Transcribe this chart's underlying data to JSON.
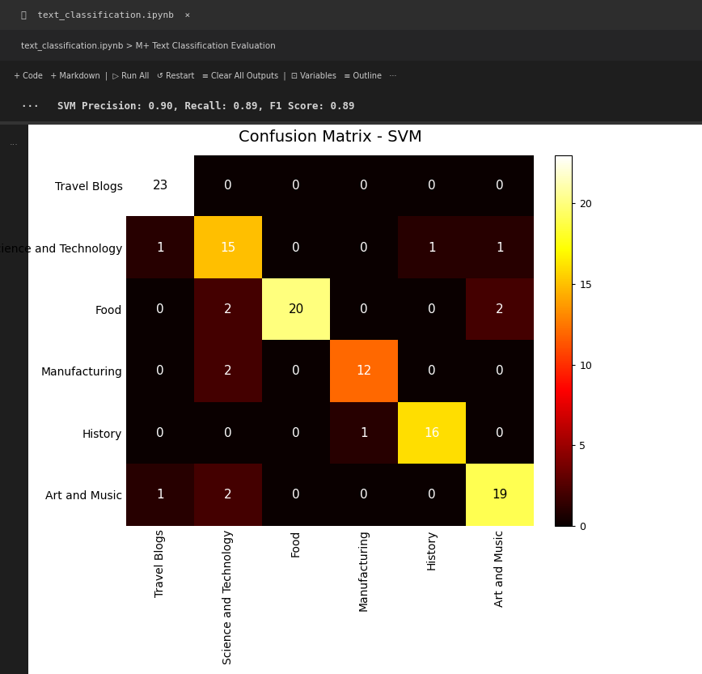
{
  "title": "Confusion Matrix - SVM",
  "classes": [
    "Travel Blogs",
    "Science and Technology",
    "Food",
    "Manufacturing",
    "History",
    "Art and Music"
  ],
  "matrix": [
    [
      23,
      0,
      0,
      0,
      0,
      0
    ],
    [
      1,
      15,
      0,
      0,
      1,
      1
    ],
    [
      0,
      2,
      20,
      0,
      0,
      2
    ],
    [
      0,
      2,
      0,
      12,
      0,
      0
    ],
    [
      0,
      0,
      0,
      1,
      16,
      0
    ],
    [
      1,
      2,
      0,
      0,
      0,
      19
    ]
  ],
  "cmap": "hot",
  "vmin": 0,
  "vmax": 23,
  "colorbar_ticks": [
    0,
    5,
    10,
    15,
    20
  ],
  "title_fontsize": 14,
  "tick_fontsize": 10,
  "annot_fontsize": 11,
  "plot_bg": "white",
  "chrome_bg": "#1e1e1e",
  "chrome_tab_bg": "#2d2d2d",
  "text_color": "black",
  "chrome_text_color": "white",
  "figsize": [
    8.68,
    8.33
  ],
  "dpi": 100,
  "header_text": "SVM Precision: 0.90, Recall: 0.89, F1 Score: 0.89",
  "tab_text": "text_classification.ipynb",
  "breadcrumb_text": "text_classification.ipynb > M+ Text Classification Evaluation",
  "toolbar_items": [
    "+ Code",
    "+ Markdown",
    "Run All",
    "Restart",
    "Clear All Outputs",
    "Variables",
    "Outline",
    "..."
  ]
}
